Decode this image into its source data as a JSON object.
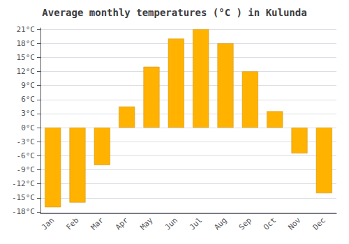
{
  "chart_data": {
    "type": "bar",
    "title": "Average monthly temperatures (°C ) in Kulunda",
    "categories": [
      "Jan",
      "Feb",
      "Mar",
      "Apr",
      "May",
      "Jun",
      "Jul",
      "Aug",
      "Sep",
      "Oct",
      "Nov",
      "Dec"
    ],
    "values": [
      -17,
      -16,
      -8,
      4.5,
      13,
      19,
      21,
      18,
      12,
      3.5,
      -5.5,
      -14
    ],
    "color": "#FFB300",
    "ylim": [
      -18.3,
      21.3
    ],
    "yticks": [
      {
        "value": -18,
        "label": "-18°C"
      },
      {
        "value": -15,
        "label": "-15°C"
      },
      {
        "value": -12,
        "label": "-12°C"
      },
      {
        "value": -9,
        "label": "-9°C"
      },
      {
        "value": -6,
        "label": "-6°C"
      },
      {
        "value": -3,
        "label": "-3°C"
      },
      {
        "value": 0,
        "label": "0°C"
      },
      {
        "value": 3,
        "label": "3°C"
      },
      {
        "value": 6,
        "label": "6°C"
      },
      {
        "value": 9,
        "label": "9°C"
      },
      {
        "value": 12,
        "label": "12°C"
      },
      {
        "value": 15,
        "label": "15°C"
      },
      {
        "value": 18,
        "label": "18°C"
      },
      {
        "value": 21,
        "label": "21°C"
      }
    ],
    "grid": true
  }
}
